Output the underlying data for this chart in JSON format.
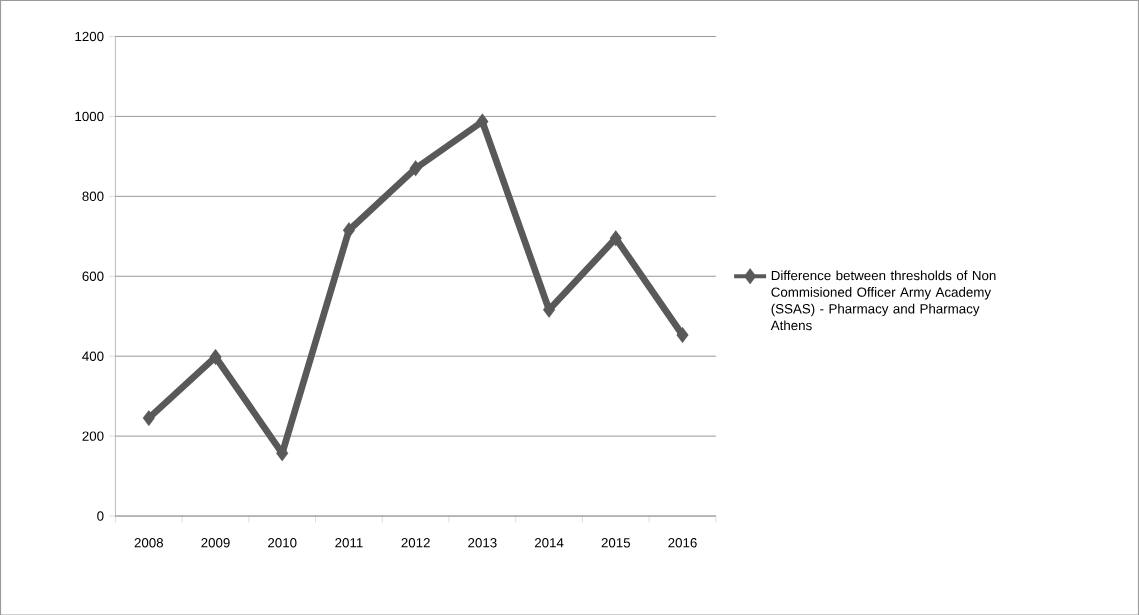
{
  "chart_data": {
    "type": "line",
    "categories": [
      "2008",
      "2009",
      "2010",
      "2011",
      "2012",
      "2013",
      "2014",
      "2015",
      "2016"
    ],
    "series": [
      {
        "name": "Difference between thresholds of Non Commisioned Officer Army Academy (SSAS) - Pharmacy and Pharmacy Athens",
        "color": "#595959",
        "values": [
          245,
          398,
          157,
          715,
          870,
          987,
          516,
          695,
          453
        ]
      }
    ],
    "ylim": [
      0,
      1200
    ],
    "yticks": [
      0,
      200,
      400,
      600,
      800,
      1000,
      1200
    ],
    "grid": "y",
    "legend": "right",
    "marker": "diamond",
    "line_style": "solid"
  }
}
